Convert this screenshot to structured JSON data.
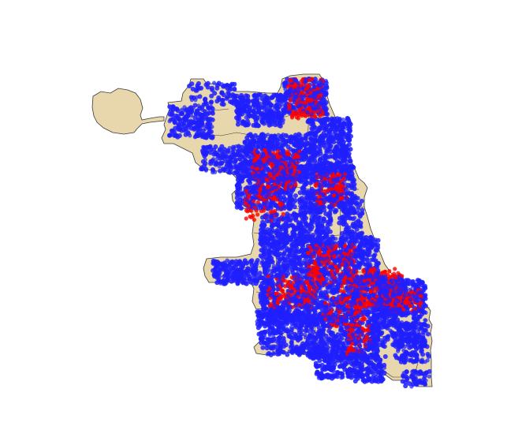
{
  "map": {
    "land_color": "#E8D7AC",
    "border_color": "#3a3a3a",
    "point_colors": {
      "primary": "#1f1fff",
      "secondary": "#ff0000"
    },
    "point_layers": [
      "primary",
      "secondary"
    ]
  }
}
